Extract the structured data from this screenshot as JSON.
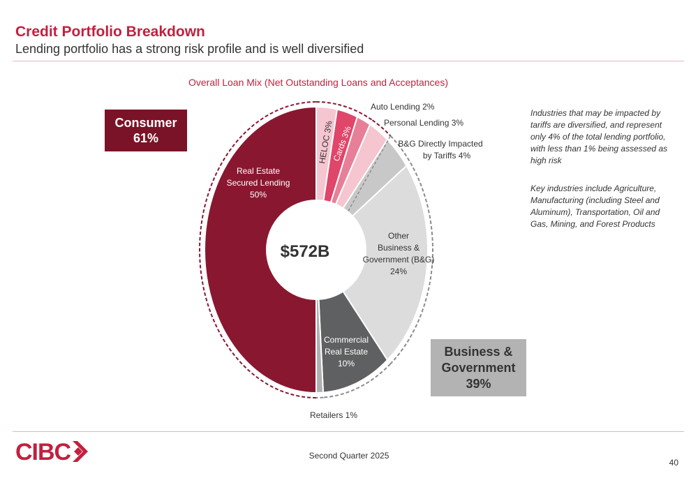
{
  "header": {
    "title": "Credit Portfolio Breakdown",
    "subtitle": "Lending portfolio has a strong risk profile and is well diversified"
  },
  "chart_data": {
    "type": "pie",
    "title": "Overall Loan Mix (Net Outstanding Loans and Acceptances)",
    "center_label": "$572B",
    "slices": [
      {
        "name": "HELOC",
        "value": 3,
        "label": "HELOC 3%",
        "color": "#f5c6d0",
        "group": "Consumer"
      },
      {
        "name": "Cards",
        "value": 3,
        "label": "Cards 3%",
        "color": "#e0456a",
        "group": "Consumer"
      },
      {
        "name": "Auto Lending",
        "value": 2,
        "label": "Auto Lending 2%",
        "color": "#e77f98",
        "group": "Consumer"
      },
      {
        "name": "Personal Lending",
        "value": 3,
        "label": "Personal Lending 3%",
        "color": "#f5c6d0",
        "group": "Consumer"
      },
      {
        "name": "B&G Directly Impacted by Tariffs",
        "value": 4,
        "label": "B&G Directly Impacted by Tariffs 4%",
        "color": "#c8c8c8",
        "group": "Business & Government"
      },
      {
        "name": "Other Business & Government (B&G)",
        "value": 24,
        "label": "Other Business & Government (B&G) 24%",
        "color": "#dcdcdc",
        "group": "Business & Government"
      },
      {
        "name": "Commercial Real Estate",
        "value": 10,
        "label": "Commercial Real Estate 10%",
        "color": "#5f6061",
        "group": "Business & Government"
      },
      {
        "name": "Retailers",
        "value": 1,
        "label": "Retailers 1%",
        "color": "#b0b0b0",
        "group": "Business & Government"
      },
      {
        "name": "Real Estate Secured Lending",
        "value": 50,
        "label": "Real Estate Secured Lending 50%",
        "color": "#8a1730",
        "group": "Consumer"
      }
    ],
    "text_labels": {
      "heloc": "HELOC 3%",
      "cards": "Cards 3%",
      "auto": "Auto Lending 2%",
      "personal": "Personal Lending 3%",
      "tariffs_1": "B&G Directly Impacted",
      "tariffs_2": "by Tariffs 4%",
      "other_1": "Other",
      "other_2": "Business &",
      "other_3": "Government (B&G)",
      "other_4": "24%",
      "cre_1": "Commercial",
      "cre_2": "Real Estate",
      "cre_3": "10%",
      "resl_1": "Real Estate",
      "resl_2": "Secured Lending",
      "resl_3": "50%",
      "retailers": "Retailers 1%"
    },
    "groups": [
      {
        "name": "Consumer",
        "line1": "Consumer",
        "line2": "61%",
        "color": "#7a1327"
      },
      {
        "name": "Business & Government",
        "line1": "Business &",
        "line2": "Government",
        "line3": "39%",
        "color": "#b3b3b3"
      }
    ]
  },
  "notes": {
    "note1": "Industries that may be impacted by tariffs are diversified, and represent only 4% of the total lending portfolio, with less than 1% being assessed as high risk",
    "note2": "Key industries include Agriculture, Manufacturing (including Steel and Aluminum), Transportation, Oil and Gas, Mining, and Forest Products"
  },
  "footer": {
    "logo_text": "CIBC",
    "quarter": "Second Quarter 2025",
    "page_number": "40"
  },
  "colors": {
    "brand_red": "#c41f3e",
    "dark_red": "#8a1730",
    "consumer_box": "#7a1327",
    "business_box": "#b3b3b3"
  }
}
